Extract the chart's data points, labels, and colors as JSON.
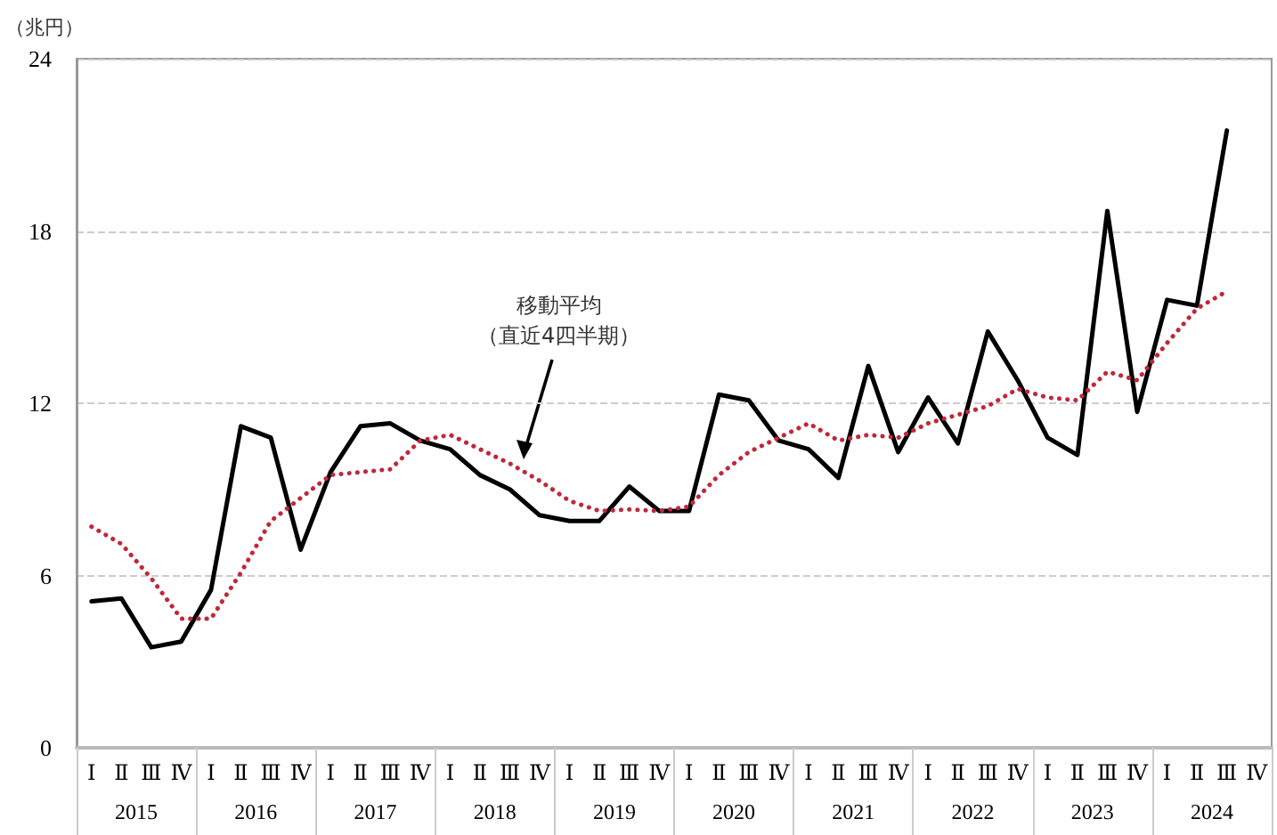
{
  "chart_data": {
    "type": "line",
    "ylabel": "（兆円）",
    "categories": [
      "Ⅰ",
      "Ⅱ",
      "Ⅲ",
      "Ⅳ",
      "Ⅰ",
      "Ⅱ",
      "Ⅲ",
      "Ⅳ",
      "Ⅰ",
      "Ⅱ",
      "Ⅲ",
      "Ⅳ",
      "Ⅰ",
      "Ⅱ",
      "Ⅲ",
      "Ⅳ",
      "Ⅰ",
      "Ⅱ",
      "Ⅲ",
      "Ⅳ",
      "Ⅰ",
      "Ⅱ",
      "Ⅲ",
      "Ⅳ",
      "Ⅰ",
      "Ⅱ",
      "Ⅲ",
      "Ⅳ",
      "Ⅰ",
      "Ⅱ",
      "Ⅲ",
      "Ⅳ",
      "Ⅰ",
      "Ⅱ",
      "Ⅲ",
      "Ⅳ",
      "Ⅰ",
      "Ⅱ",
      "Ⅲ",
      "Ⅳ"
    ],
    "series": [
      {
        "color": "#000000",
        "line_style": "solid",
        "values": [
          5.1,
          5.2,
          3.5,
          3.7,
          5.5,
          11.2,
          10.8,
          6.9,
          9.6,
          11.2,
          11.3,
          10.7,
          10.4,
          9.5,
          9.0,
          8.1,
          7.9,
          7.9,
          9.1,
          8.25,
          8.25,
          12.3,
          12.1,
          10.7,
          10.4,
          9.4,
          13.3,
          10.3,
          12.2,
          10.6,
          14.5,
          12.8,
          10.8,
          10.2,
          18.7,
          11.7,
          15.6,
          15.4,
          21.5,
          null
        ]
      },
      {
        "color": "#c0283a",
        "line_style": "dotted",
        "values": [
          7.7,
          7.1,
          5.9,
          4.5,
          4.5,
          6.1,
          7.9,
          8.7,
          9.5,
          9.6,
          9.7,
          10.7,
          10.9,
          10.4,
          9.9,
          9.3,
          8.6,
          8.25,
          8.3,
          8.25,
          8.4,
          9.5,
          10.3,
          10.8,
          11.3,
          10.7,
          10.9,
          10.8,
          11.3,
          11.6,
          11.9,
          12.5,
          12.2,
          12.1,
          13.1,
          12.8,
          14.1,
          15.3,
          15.9,
          null
        ]
      }
    ],
    "ylim": [
      0,
      24
    ],
    "yticks": [
      0,
      6,
      12,
      18,
      24
    ],
    "grid": "y",
    "marker": "none",
    "annotations": [
      "移動平均",
      "（直近4四半期）",
      "2015",
      "2016",
      "2017",
      "2018",
      "2019",
      "2020",
      "2021",
      "2022",
      "2023",
      "2024"
    ]
  }
}
